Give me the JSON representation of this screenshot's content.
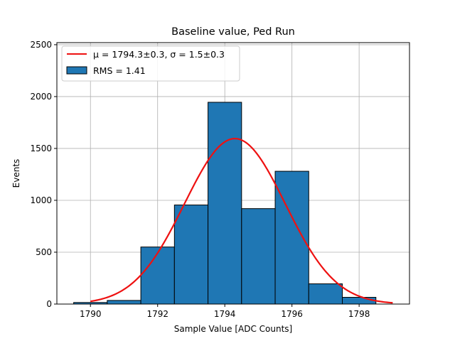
{
  "chart_data": {
    "type": "bar",
    "title": "Baseline value, Ped Run",
    "xlabel": "Sample Value [ADC Counts]",
    "ylabel": "Events",
    "xlim": [
      1789,
      1799.5
    ],
    "ylim": [
      0,
      2520
    ],
    "grid": true,
    "bin_width": 1,
    "bin_centers": [
      1790,
      1791,
      1792,
      1793,
      1794,
      1795,
      1796,
      1797,
      1798
    ],
    "values": [
      15,
      35,
      550,
      955,
      1945,
      920,
      1280,
      195,
      65
    ],
    "x_ticks": [
      1790,
      1792,
      1794,
      1796,
      1798
    ],
    "x_tick_labels": [
      "1790",
      "1792",
      "1794",
      "1796",
      "1798"
    ],
    "y_ticks": [
      0,
      500,
      1000,
      1500,
      2000,
      2500
    ],
    "y_tick_labels": [
      "0",
      "500",
      "1000",
      "1500",
      "2000",
      "2500"
    ],
    "fit": {
      "type": "gaussian",
      "mu": 1794.3,
      "sigma": 1.5,
      "amplitude": 1595,
      "x_range": [
        1790,
        1799
      ],
      "color": "#ee1111"
    },
    "bar_color": "#1f77b4",
    "legend": {
      "placement": "top-left",
      "entries": [
        {
          "label": "μ = 1794.3±0.3, σ = 1.5±0.3",
          "kind": "line"
        },
        {
          "label": "RMS = 1.41",
          "kind": "patch"
        }
      ]
    }
  }
}
